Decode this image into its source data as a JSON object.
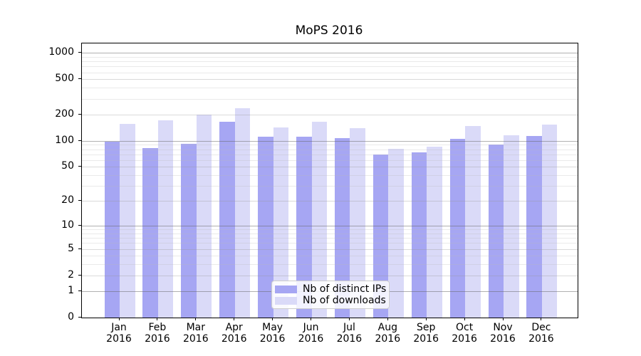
{
  "title": "MoPS 2016",
  "chart_data": {
    "type": "bar",
    "title": "MoPS 2016",
    "categories": [
      "Jan",
      "Feb",
      "Mar",
      "Apr",
      "May",
      "Jun",
      "Jul",
      "Aug",
      "Sep",
      "Oct",
      "Nov",
      "Dec"
    ],
    "x_year": "2016",
    "series": [
      {
        "name": "Nb of distinct IPs",
        "color": "#a6a6f3",
        "values": [
          98,
          82,
          93,
          164,
          112,
          112,
          108,
          70,
          74,
          106,
          90,
          114
        ]
      },
      {
        "name": "Nb of downloads",
        "color": "#dadaf8",
        "values": [
          156,
          170,
          198,
          237,
          142,
          166,
          138,
          81,
          86,
          146,
          116,
          152
        ]
      }
    ],
    "xlabel": "",
    "ylabel": "",
    "yscale": "log1p",
    "ylim": [
      0,
      1278
    ],
    "yticks": [
      0,
      1,
      2,
      5,
      10,
      20,
      50,
      100,
      200,
      500,
      1000
    ],
    "grid_major_at": [
      1,
      10,
      100,
      1000
    ],
    "grid_minor_at": [
      2,
      5,
      20,
      50,
      200,
      500
    ],
    "grid_faint_at": [
      3,
      4,
      6,
      7,
      8,
      9,
      30,
      40,
      60,
      70,
      80,
      90,
      300,
      400,
      600,
      700,
      800,
      900
    ],
    "legend_position": "lower-center-inside",
    "colors": {
      "grid_major": "rgba(100,100,100,0.5)",
      "grid_minor": "rgba(150,150,150,0.35)",
      "grid_faint": "rgba(185,185,185,0.3)",
      "axis": "#000000",
      "background": "#ffffff"
    }
  },
  "legend": {
    "items": [
      {
        "label": "Nb of distinct IPs"
      },
      {
        "label": "Nb of downloads"
      }
    ]
  }
}
